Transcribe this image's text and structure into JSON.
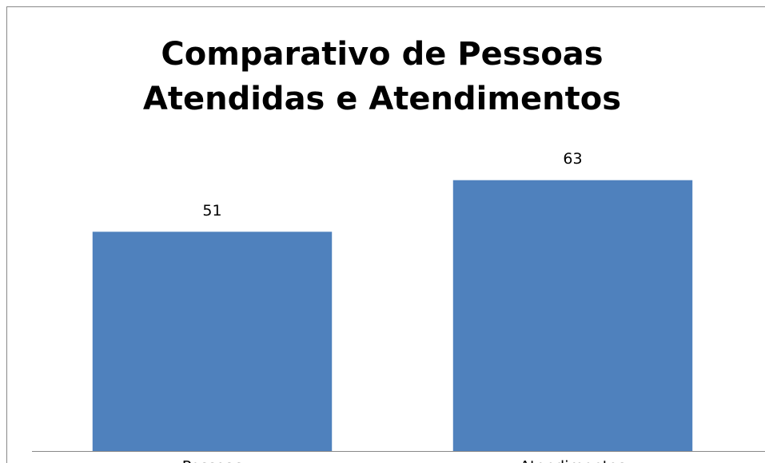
{
  "chart_data": {
    "type": "bar",
    "title": "Comparativo de Pessoas Atendidas e Atendimentos",
    "categories": [
      "Pessoas",
      "Atendimentos"
    ],
    "values": [
      51,
      63
    ],
    "color": "#4f81bd",
    "ylim": [
      0,
      70
    ]
  }
}
